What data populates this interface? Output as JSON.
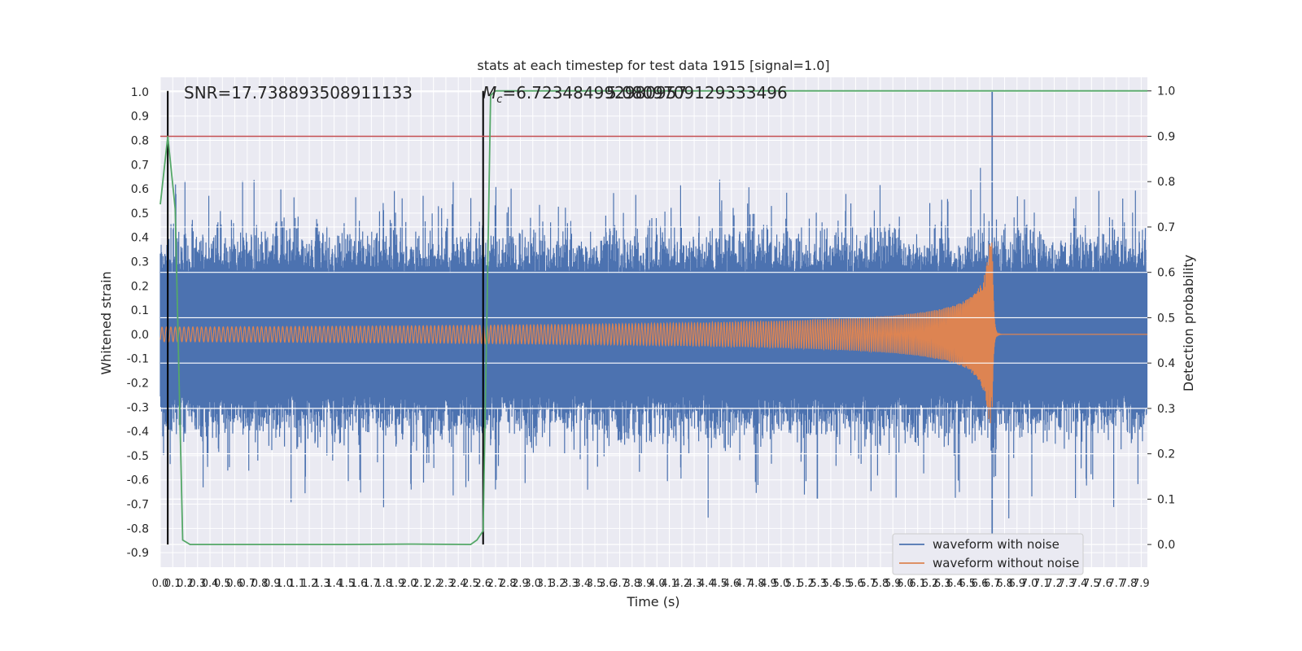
{
  "chart_data": {
    "type": "line",
    "title": "stats at each timestep for test data 1915 [signal=1.0]",
    "xlabel": "Time (s)",
    "ylabel": "Whitened strain",
    "y2label": "Detection probability",
    "xlim": [
      0.0,
      7.95
    ],
    "ylim": [
      -0.96,
      1.06
    ],
    "y2lim": [
      -0.05,
      1.03
    ],
    "x_ticks": [
      "0.0",
      "0.1",
      "0.2",
      "0.3",
      "0.4",
      "0.5",
      "0.6",
      "0.7",
      "0.8",
      "0.9",
      "1.0",
      "1.1",
      "1.2",
      "1.3",
      "1.4",
      "1.5",
      "1.6",
      "1.7",
      "1.8",
      "1.9",
      "2.0",
      "2.1",
      "2.2",
      "2.3",
      "2.4",
      "2.5",
      "2.6",
      "2.7",
      "2.8",
      "2.9",
      "3.0",
      "3.1",
      "3.2",
      "3.3",
      "3.4",
      "3.5",
      "3.6",
      "3.7",
      "3.8",
      "3.9",
      "4.0",
      "4.1",
      "4.2",
      "4.3",
      "4.4",
      "4.5",
      "4.6",
      "4.7",
      "4.8",
      "4.9",
      "5.0",
      "5.1",
      "5.2",
      "5.3",
      "5.4",
      "5.5",
      "5.6",
      "5.7",
      "5.8",
      "5.9",
      "6.0",
      "6.1",
      "6.2",
      "6.3",
      "6.4",
      "6.5",
      "6.6",
      "6.7",
      "6.8",
      "6.9",
      "7.0",
      "7.1",
      "7.2",
      "7.3",
      "7.4",
      "7.5",
      "7.6",
      "7.7",
      "7.8",
      "7.9"
    ],
    "y_ticks": [
      "1.0",
      "0.9",
      "0.8",
      "0.7",
      "0.6",
      "0.5",
      "0.4",
      "0.3",
      "0.2",
      "0.1",
      "0.0",
      "-0.1",
      "-0.2",
      "-0.3",
      "-0.4",
      "-0.5",
      "-0.6",
      "-0.7",
      "-0.8",
      "-0.9"
    ],
    "y2_ticks": [
      "1.0",
      "0.9",
      "0.8",
      "0.7",
      "0.6",
      "0.5",
      "0.4",
      "0.3",
      "0.2",
      "0.1",
      "0.0"
    ],
    "annotations": {
      "snr": "SNR=17.738893508911133",
      "mc_prefix": "M",
      "mc_sub": "c",
      "mc_value": "=6.723484992980957",
      "overlap": "5.0809709129333496"
    },
    "vlines_x": [
      0.06,
      2.6
    ],
    "threshold_y2": 0.9,
    "detection_probability": {
      "x": [
        0.0,
        0.06,
        0.12,
        0.18,
        0.24,
        0.5,
        1.0,
        1.5,
        2.0,
        2.5,
        2.55,
        2.6,
        2.63,
        2.66,
        2.7,
        3.0,
        4.0,
        5.0,
        6.0,
        7.0,
        7.95
      ],
      "y": [
        0.75,
        0.9,
        0.74,
        0.01,
        0.0,
        0.0,
        0.0,
        0.0,
        0.001,
        0.0,
        0.01,
        0.03,
        0.5,
        0.99,
        1.0,
        1.0,
        1.0,
        1.0,
        1.0,
        1.0,
        1.0
      ]
    },
    "noise_envelope": {
      "typical_amplitude": 0.25,
      "max_peak_pos": 1.0,
      "max_peak_neg": -0.87,
      "peak_time": 6.7
    },
    "chirp": {
      "start_amplitude": 0.03,
      "merger_time": 6.7,
      "merger_amplitude_pos": 0.38,
      "merger_amplitude_neg": -0.43
    },
    "series": [
      {
        "name": "waveform with noise",
        "color": "#4c72b0"
      },
      {
        "name": "waveform without noise",
        "color": "#dd8452"
      }
    ],
    "prob_color": "#55a868",
    "threshold_color": "#c44e52",
    "legend_position": "lower-right"
  }
}
